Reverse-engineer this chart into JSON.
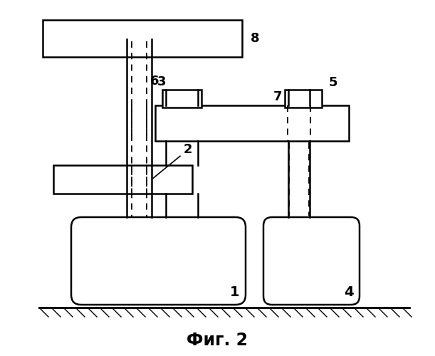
{
  "title": "Фиг. 2",
  "bg_color": "#ffffff",
  "line_color": "#000000",
  "fig_width": 6.11,
  "fig_height": 5.0,
  "dpi": 100
}
